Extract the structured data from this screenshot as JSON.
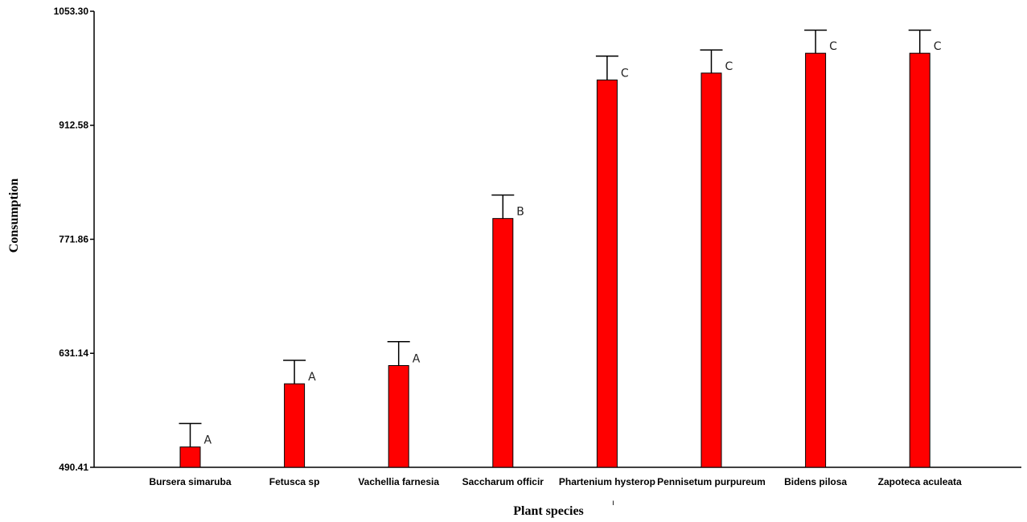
{
  "chart_data": {
    "type": "bar",
    "title": "",
    "xlabel": "Plant species",
    "ylabel": "Consumption",
    "categories": [
      "Bursera simaruba",
      "Fetusca sp",
      "Vachellia farnesia",
      "Saccharum officir",
      "Phartenium hysterop",
      "Pennisetum purpureum",
      "Bidens pilosa",
      "Zapoteca aculeata"
    ],
    "values": [
      515.5,
      593.5,
      616.0,
      797.5,
      968.5,
      977.0,
      1001.5,
      1001.5
    ],
    "error_upper": [
      544.5,
      622.5,
      645.5,
      826.5,
      998.0,
      1005.5,
      1030.0,
      1030.0
    ],
    "significance": [
      "A",
      "A",
      "A",
      "B",
      "C",
      "C",
      "C",
      "C"
    ],
    "yticks": [
      "490.41",
      "631.14",
      "771.86",
      "912.58",
      "1053.30"
    ],
    "ylim": [
      490.41,
      1053.3
    ],
    "grid": false,
    "legend": "none",
    "bar_color": "#ff0000",
    "stray_mark": "ı"
  }
}
